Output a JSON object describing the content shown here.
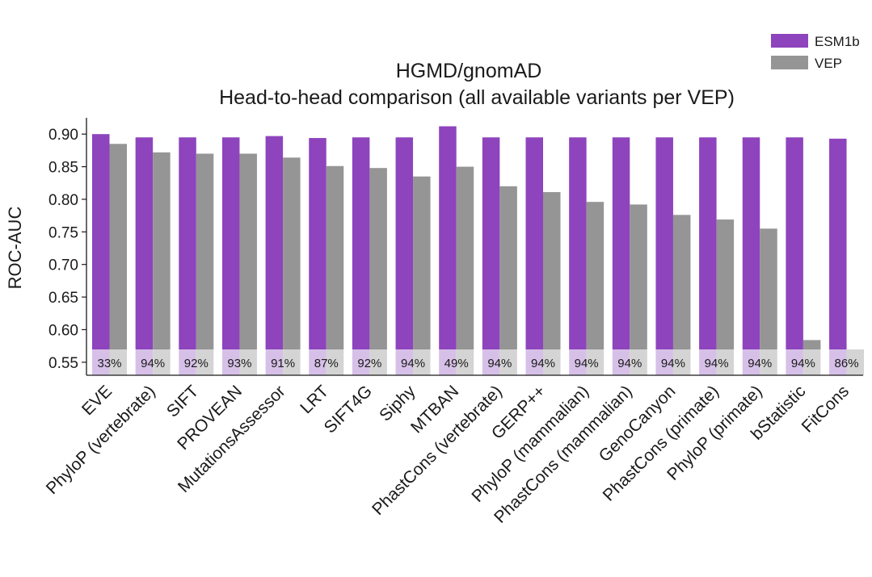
{
  "chart_data": {
    "type": "bar",
    "title": [
      "HGMD/gnomAD",
      "Head-to-head comparison (all available variants per VEP)"
    ],
    "ylabel": "ROC-AUC",
    "xlabel": "",
    "ylim": [
      0.53,
      0.925
    ],
    "yticks": [
      0.55,
      0.6,
      0.65,
      0.7,
      0.75,
      0.8,
      0.85,
      0.9
    ],
    "ytick_labels": [
      "0.55",
      "0.60",
      "0.65",
      "0.70",
      "0.75",
      "0.80",
      "0.85",
      "0.90"
    ],
    "grid": false,
    "legend_position": "top-right",
    "categories": [
      "EVE",
      "PhyloP (vertebrate)",
      "SIFT",
      "PROVEAN",
      "MutationsAssessor",
      "LRT",
      "SIFT4G",
      "Siphy",
      "MTBAN",
      "PhastCons (vertebrate)",
      "GERP++",
      "PhyloP (mammalian)",
      "PhastCons (mammalian)",
      "GenoCanyon",
      "PhastCons (primate)",
      "PhyloP (primate)",
      "bStatistic",
      "FitCons"
    ],
    "series": [
      {
        "name": "ESM1b",
        "color": "#8e44bd",
        "values": [
          0.9,
          0.895,
          0.895,
          0.895,
          0.897,
          0.894,
          0.895,
          0.895,
          0.912,
          0.895,
          0.895,
          0.895,
          0.895,
          0.895,
          0.895,
          0.895,
          0.895,
          0.893
        ]
      },
      {
        "name": "VEP",
        "color": "#959595",
        "values": [
          0.885,
          0.872,
          0.87,
          0.87,
          0.864,
          0.851,
          0.848,
          0.835,
          0.85,
          0.82,
          0.811,
          0.796,
          0.792,
          0.776,
          0.769,
          0.755,
          0.584,
          0.568
        ]
      }
    ],
    "coverage_labels": [
      "33%",
      "94%",
      "92%",
      "93%",
      "91%",
      "87%",
      "92%",
      "94%",
      "49%",
      "94%",
      "94%",
      "94%",
      "94%",
      "94%",
      "94%",
      "94%",
      "94%",
      "86%"
    ],
    "band_colors": {
      "esm1b": "#d6c0e8",
      "vep": "#d4d4d4"
    }
  }
}
